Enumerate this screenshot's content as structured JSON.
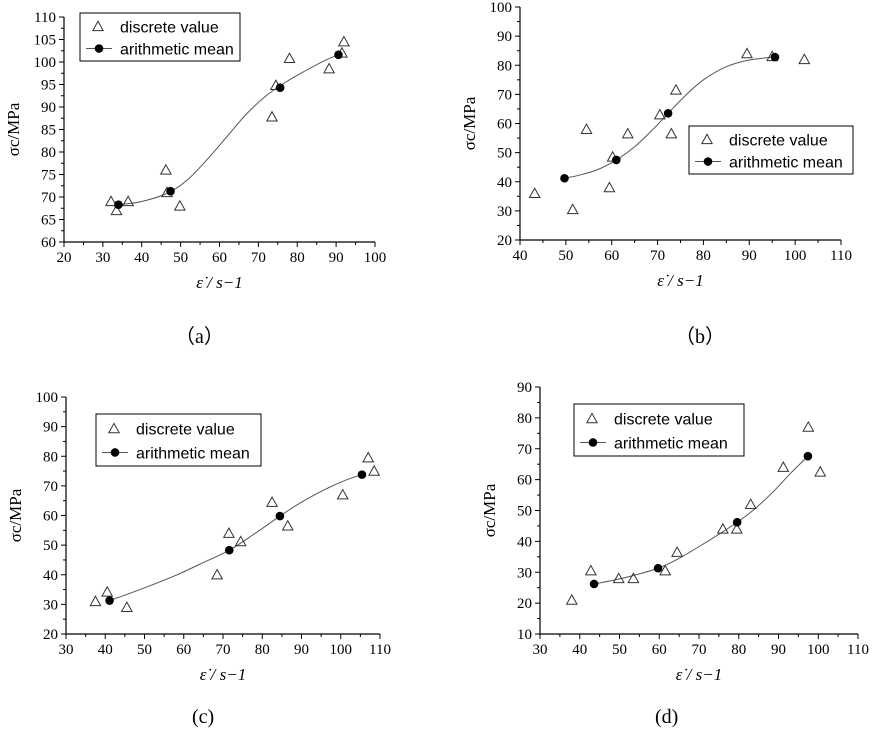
{
  "chart_data": [
    {
      "type": "scatter",
      "caption": "（a）",
      "xlabel": "ε̇ / s−1",
      "ylabel": "σc/MPa",
      "xlim": [
        20,
        100
      ],
      "ylim": [
        60,
        110
      ],
      "xticks": [
        20,
        30,
        40,
        50,
        60,
        70,
        80,
        90,
        100
      ],
      "yticks": [
        60,
        65,
        70,
        75,
        80,
        85,
        90,
        95,
        100,
        105,
        110
      ],
      "legend_position": "top-left",
      "series": [
        {
          "name": "discrete value",
          "marker": "triangle",
          "x": [
            32.1,
            33.5,
            36.5,
            46.2,
            46.5,
            49.8,
            73.5,
            74.5,
            78.0,
            88.2,
            91.5,
            92.0
          ],
          "y": [
            69.0,
            67.0,
            69.0,
            76.0,
            71.0,
            68.0,
            87.8,
            94.8,
            100.8,
            98.5,
            102.0,
            104.5
          ]
        },
        {
          "name": "arithmetic mean",
          "marker": "circle",
          "x": [
            34.0,
            47.4,
            75.6,
            90.6
          ],
          "y": [
            68.3,
            71.3,
            94.3,
            101.6
          ]
        }
      ],
      "fit_curve": {
        "x": [
          34,
          40,
          47,
          52,
          57,
          62,
          67,
          72,
          77,
          82,
          87,
          90.6
        ],
        "y": [
          68.3,
          69.0,
          71.0,
          74.0,
          78.5,
          83.5,
          88.5,
          92.5,
          95.5,
          98.0,
          100.3,
          101.6
        ]
      }
    },
    {
      "type": "scatter",
      "caption": "（b）",
      "xlabel": "ε̇ / s−1",
      "ylabel": "σc/MPa",
      "xlim": [
        40,
        110
      ],
      "ylim": [
        20,
        100
      ],
      "xticks": [
        40,
        50,
        60,
        70,
        80,
        90,
        100,
        110
      ],
      "yticks": [
        20,
        30,
        40,
        50,
        60,
        70,
        80,
        90,
        100
      ],
      "legend_position": "center-right",
      "series": [
        {
          "name": "discrete value",
          "marker": "triangle",
          "x": [
            43.2,
            51.5,
            54.5,
            59.5,
            60.2,
            63.5,
            70.5,
            73.0,
            74.0,
            89.5,
            95.0,
            102.0
          ],
          "y": [
            36.0,
            30.5,
            58.0,
            38.0,
            48.5,
            56.5,
            63.0,
            56.5,
            71.5,
            84.0,
            83.0,
            82.0
          ]
        },
        {
          "name": "arithmetic mean",
          "marker": "circle",
          "x": [
            49.7,
            61.0,
            72.3,
            95.6
          ],
          "y": [
            41.2,
            47.5,
            63.5,
            82.8
          ]
        }
      ],
      "fit_curve": {
        "x": [
          49.7,
          53,
          57,
          61,
          65,
          69,
          72.3,
          76,
          80,
          85,
          90,
          95.6
        ],
        "y": [
          41.2,
          42.3,
          44.2,
          47.5,
          52.0,
          58.0,
          63.5,
          69.5,
          75.0,
          79.5,
          81.8,
          82.8
        ]
      }
    },
    {
      "type": "scatter",
      "caption": "(c)",
      "xlabel": "ε̇ / s−1",
      "ylabel": "σc/MPa",
      "xlim": [
        30,
        110
      ],
      "ylim": [
        20,
        100
      ],
      "xticks": [
        30,
        40,
        50,
        60,
        70,
        80,
        90,
        100,
        110
      ],
      "yticks": [
        20,
        30,
        40,
        50,
        60,
        70,
        80,
        90,
        100
      ],
      "legend_position": "top-left",
      "series": [
        {
          "name": "discrete value",
          "marker": "triangle",
          "x": [
            37.5,
            40.5,
            45.5,
            68.5,
            71.5,
            74.5,
            82.5,
            86.5,
            100.5,
            107.0,
            108.5
          ],
          "y": [
            31.0,
            34.2,
            29.0,
            40.0,
            54.0,
            51.2,
            64.5,
            56.5,
            67.0,
            79.5,
            75.0
          ]
        },
        {
          "name": "arithmetic mean",
          "marker": "circle",
          "x": [
            41.1,
            71.6,
            84.5,
            105.4
          ],
          "y": [
            31.3,
            48.3,
            59.8,
            73.8
          ]
        }
      ],
      "fit_curve": {
        "x": [
          41.1,
          46,
          52,
          58,
          64,
          71.6,
          78,
          84.5,
          90,
          96,
          101,
          105.4
        ],
        "y": [
          31.3,
          33.6,
          36.6,
          39.8,
          43.5,
          48.3,
          53.8,
          59.8,
          64.5,
          68.8,
          71.8,
          73.8
        ]
      }
    },
    {
      "type": "scatter",
      "caption": "(d)",
      "xlabel": "ε̇ / s−1",
      "ylabel": "σc/MPa",
      "xlim": [
        30,
        110
      ],
      "ylim": [
        10,
        90
      ],
      "xticks": [
        30,
        40,
        50,
        60,
        70,
        80,
        90,
        100,
        110
      ],
      "yticks": [
        10,
        20,
        30,
        40,
        50,
        60,
        70,
        80,
        90
      ],
      "legend_position": "top-left",
      "series": [
        {
          "name": "discrete value",
          "marker": "triangle",
          "x": [
            38.0,
            42.8,
            49.8,
            53.5,
            61.5,
            64.5,
            76.0,
            79.5,
            83.0,
            91.2,
            97.5,
            100.5
          ],
          "y": [
            21.0,
            30.5,
            28.0,
            28.0,
            30.5,
            36.5,
            44.0,
            44.0,
            52.0,
            64.0,
            77.0,
            62.5
          ]
        },
        {
          "name": "arithmetic mean",
          "marker": "circle",
          "x": [
            43.6,
            59.7,
            79.6,
            97.4
          ],
          "y": [
            26.2,
            31.3,
            46.2,
            67.6
          ]
        }
      ],
      "fit_curve": {
        "x": [
          43.6,
          48,
          53,
          59.7,
          65,
          70,
          75,
          79.6,
          84,
          89,
          93,
          97.4
        ],
        "y": [
          26.2,
          27.3,
          28.8,
          31.3,
          34.5,
          38.3,
          42.3,
          46.2,
          50.5,
          56.5,
          62.0,
          67.6
        ]
      }
    }
  ]
}
